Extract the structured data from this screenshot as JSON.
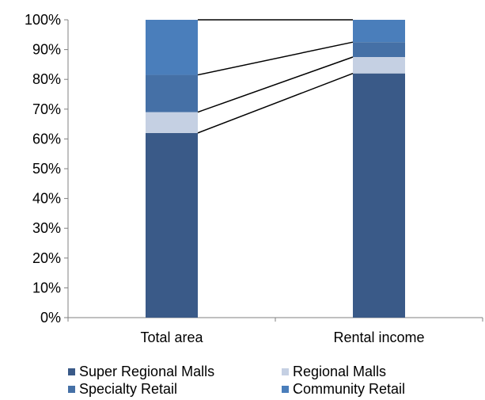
{
  "chart_data": {
    "type": "bar",
    "stacked": true,
    "percent": true,
    "categories": [
      "Total area",
      "Rental income"
    ],
    "series": [
      {
        "name": "Super Regional Malls",
        "values": [
          62,
          82
        ],
        "color": "#3a5a88"
      },
      {
        "name": "Regional Malls",
        "values": [
          7,
          5.5
        ],
        "color": "#c5d0e3"
      },
      {
        "name": "Specialty Retail",
        "values": [
          12.5,
          5
        ],
        "color": "#4570a6"
      },
      {
        "name": "Community Retail",
        "values": [
          18.5,
          7.5
        ],
        "color": "#4a7ebb"
      }
    ],
    "ylim": [
      0,
      100
    ],
    "yticks": [
      "0%",
      "10%",
      "20%",
      "30%",
      "40%",
      "50%",
      "60%",
      "70%",
      "80%",
      "90%",
      "100%"
    ],
    "connector_lines": true,
    "grid": false,
    "legend_position": "bottom"
  }
}
